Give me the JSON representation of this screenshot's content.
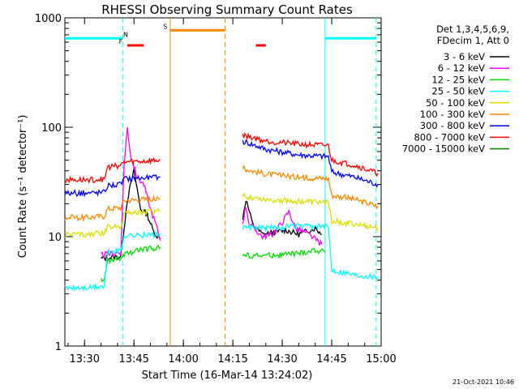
{
  "chart_data": {
    "type": "line",
    "title": "RHESSI Observing Summary Count Rates",
    "xlabel": "Start Time (16-Mar-14 13:24:02)",
    "ylabel": "Count Rate (s⁻¹ detector⁻¹)",
    "yscale": "log",
    "ylim": [
      1,
      1000
    ],
    "xlim": [
      "13:24:02",
      "15:00"
    ],
    "x_ticks": [
      "13:30",
      "13:45",
      "14:00",
      "14:15",
      "14:30",
      "14:45",
      "15:00"
    ],
    "y_ticks": [
      "1",
      "10",
      "100",
      "1000"
    ],
    "legend_header": [
      "Det 1,3,4,5,6,9,",
      "FDecim 1, Att 0"
    ],
    "footer": "21-Oct-2021 10:46",
    "series": [
      {
        "name": "3 - 6 keV",
        "color": "#000000",
        "data": [
          [
            "13:35",
            6.3
          ],
          [
            "13:41",
            6.6
          ],
          [
            "13:43",
            22
          ],
          [
            "13:45",
            40
          ],
          [
            "13:47",
            18
          ],
          [
            "13:49",
            16
          ],
          [
            "13:51",
            11
          ],
          [
            "13:53",
            9.5
          ],
          [
            "14:18",
            15
          ],
          [
            "14:19",
            22
          ],
          [
            "14:21",
            13
          ],
          [
            "14:24",
            10.5
          ],
          [
            "14:28",
            11
          ],
          [
            "14:31",
            11.5
          ],
          [
            "14:35",
            10.5
          ],
          [
            "14:40",
            12
          ],
          [
            "14:42",
            10.5
          ]
        ]
      },
      {
        "name": "6 - 12 keV",
        "color": "#ff00ff",
        "data": [
          [
            "13:35",
            6.8
          ],
          [
            "13:41",
            7.2
          ],
          [
            "13:42",
            45
          ],
          [
            "13:43",
            100
          ],
          [
            "13:44",
            55
          ],
          [
            "13:46",
            35
          ],
          [
            "13:48",
            30
          ],
          [
            "13:50",
            18
          ],
          [
            "13:52",
            12
          ],
          [
            "13:53",
            9.2
          ],
          [
            "14:18",
            13.5
          ],
          [
            "14:19",
            19
          ],
          [
            "14:20",
            13
          ],
          [
            "14:24",
            10
          ],
          [
            "14:27",
            10.5
          ],
          [
            "14:30",
            13.5
          ],
          [
            "14:32",
            17
          ],
          [
            "14:34",
            12
          ],
          [
            "14:38",
            10.5
          ],
          [
            "14:42",
            8.5
          ]
        ]
      },
      {
        "name": "12 - 25 keV",
        "color": "#00dd00",
        "data": [
          [
            "13:35",
            4
          ],
          [
            "13:36",
            4
          ],
          [
            "13:37",
            6
          ],
          [
            "13:41",
            6.3
          ],
          [
            "13:42",
            6.8
          ],
          [
            "13:46",
            7.5
          ],
          [
            "13:53",
            8
          ],
          [
            "14:18",
            6.8
          ],
          [
            "14:25",
            6.7
          ],
          [
            "14:35",
            7
          ],
          [
            "14:40",
            7.5
          ],
          [
            "14:43",
            7.2
          ]
        ]
      },
      {
        "name": "25 - 50 keV",
        "color": "#00ffff",
        "data": [
          [
            "13:24",
            3.4
          ],
          [
            "13:30",
            3.4
          ],
          [
            "13:35",
            3.5
          ],
          [
            "13:36",
            3.5
          ],
          [
            "13:37",
            7.2
          ],
          [
            "13:41",
            7.5
          ],
          [
            "13:42",
            10.3
          ],
          [
            "13:48",
            10.3
          ],
          [
            "13:53",
            10.5
          ],
          [
            "14:18",
            12
          ],
          [
            "14:25",
            12
          ],
          [
            "14:35",
            12.5
          ],
          [
            "14:44",
            12.3
          ],
          [
            "14:45",
            5
          ],
          [
            "14:52",
            4.5
          ],
          [
            "14:59",
            4.3
          ]
        ]
      },
      {
        "name": "50 - 100 keV",
        "color": "#dddd00",
        "data": [
          [
            "13:24",
            10.5
          ],
          [
            "13:30",
            10.5
          ],
          [
            "13:36",
            10.8
          ],
          [
            "13:37",
            12.2
          ],
          [
            "13:41",
            12.5
          ],
          [
            "13:42",
            16.5
          ],
          [
            "13:48",
            16.8
          ],
          [
            "13:53",
            17
          ],
          [
            "14:18",
            23.5
          ],
          [
            "14:25",
            22
          ],
          [
            "14:35",
            21
          ],
          [
            "14:44",
            20.5
          ],
          [
            "14:45",
            14
          ],
          [
            "14:52",
            13
          ],
          [
            "14:59",
            12
          ]
        ]
      },
      {
        "name": "100 - 300 keV",
        "color": "#ff8800",
        "data": [
          [
            "13:24",
            15
          ],
          [
            "13:30",
            15
          ],
          [
            "13:36",
            15.5
          ],
          [
            "13:37",
            18
          ],
          [
            "13:41",
            18.5
          ],
          [
            "13:42",
            21.5
          ],
          [
            "13:48",
            22
          ],
          [
            "13:53",
            22
          ],
          [
            "14:18",
            42
          ],
          [
            "14:25",
            37.5
          ],
          [
            "14:35",
            35
          ],
          [
            "14:44",
            34
          ],
          [
            "14:45",
            24
          ],
          [
            "14:52",
            22
          ],
          [
            "14:59",
            19
          ]
        ]
      },
      {
        "name": "300 - 800 keV",
        "color": "#0000ff",
        "data": [
          [
            "13:24",
            25
          ],
          [
            "13:30",
            25
          ],
          [
            "13:36",
            25.5
          ],
          [
            "13:37",
            29.5
          ],
          [
            "13:41",
            30
          ],
          [
            "13:42",
            34
          ],
          [
            "13:48",
            34.5
          ],
          [
            "13:53",
            35
          ],
          [
            "14:18",
            75
          ],
          [
            "14:25",
            63
          ],
          [
            "14:35",
            56
          ],
          [
            "14:44",
            54
          ],
          [
            "14:45",
            39
          ],
          [
            "14:52",
            35
          ],
          [
            "14:59",
            30
          ]
        ]
      },
      {
        "name": "800 - 7000 keV",
        "color": "#ff0000",
        "data": [
          [
            "13:24",
            33
          ],
          [
            "13:30",
            33
          ],
          [
            "13:36",
            33.5
          ],
          [
            "13:37",
            43
          ],
          [
            "13:41",
            45
          ],
          [
            "13:42",
            48
          ],
          [
            "13:48",
            49
          ],
          [
            "13:53",
            50
          ],
          [
            "14:18",
            85
          ],
          [
            "14:25",
            75
          ],
          [
            "14:35",
            70
          ],
          [
            "14:44",
            68
          ],
          [
            "14:45",
            50
          ],
          [
            "14:52",
            45
          ],
          [
            "14:59",
            38
          ]
        ]
      },
      {
        "name": "7000 - 15000 keV",
        "color": "#008800",
        "data": []
      }
    ],
    "vertical_markers": [
      {
        "x": "13:41:40",
        "color": "#00ffff",
        "style": "dashed"
      },
      {
        "x": "13:56:00",
        "color": "#ff8800",
        "style": "solid"
      },
      {
        "x": "14:12:40",
        "color": "#ff8800",
        "style": "dashed"
      },
      {
        "x": "14:43:00",
        "color": "#00ffff",
        "style": "solid"
      },
      {
        "x": "14:58:30",
        "color": "#00ffff",
        "style": "dashed"
      }
    ],
    "flag_bars": [
      {
        "label": "N",
        "color": "#00ffff",
        "x0": "13:24:02",
        "x1": "13:41:40",
        "y": 650,
        "label_at": "13:42:30"
      },
      {
        "label": "N",
        "color": "#00ffff",
        "x0": "14:43:00",
        "x1": "14:58:30",
        "y": 650,
        "label_at": ""
      },
      {
        "label": "S",
        "color": "#ff8800",
        "x0": "13:56:00",
        "x1": "14:12:40",
        "y": 770,
        "label_at": "13:54:30"
      },
      {
        "label": "F",
        "color": "#ff0000",
        "x0": "13:43:00",
        "x1": "13:48:00",
        "y": 560,
        "label_at": "13:41:00"
      },
      {
        "label": "",
        "color": "#ff0000",
        "x0": "14:22:00",
        "x1": "14:25:00",
        "y": 560,
        "label_at": ""
      }
    ]
  }
}
